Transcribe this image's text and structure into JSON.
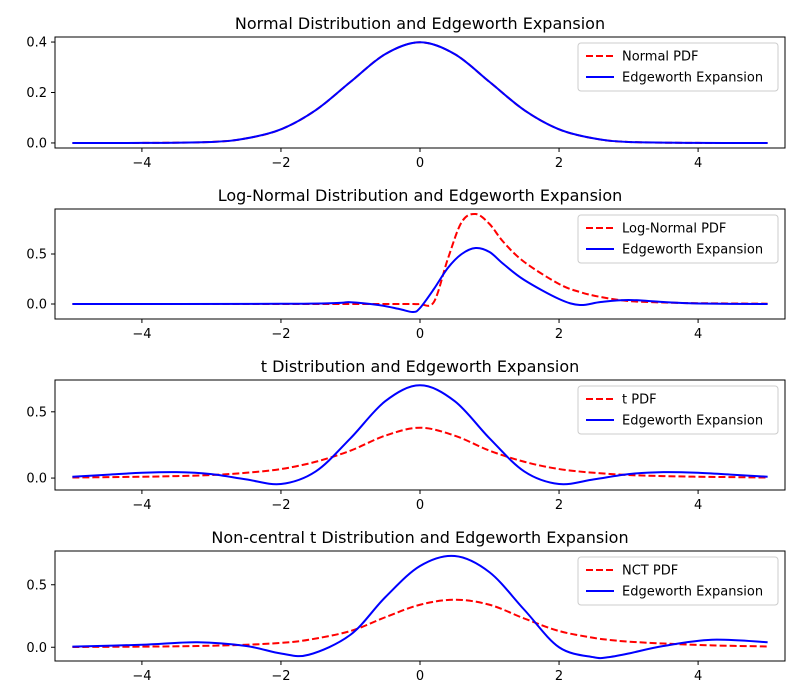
{
  "chart_data": [
    {
      "type": "line",
      "title": "Normal Distribution and Edgeworth Expansion",
      "xlabel": "",
      "ylabel": "",
      "xlim": [
        -5.25,
        5.25
      ],
      "ylim": [
        -0.02,
        0.42
      ],
      "xticks": [
        -4,
        -2,
        0,
        2,
        4
      ],
      "xtick_labels": [
        "−4",
        "−2",
        "0",
        "2",
        "4"
      ],
      "yticks": [
        0.0,
        0.2,
        0.4
      ],
      "ytick_labels": [
        "0.0",
        "0.2",
        "0.4"
      ],
      "grid": false,
      "legend": "upper right",
      "x": [
        -5,
        -4,
        -3,
        -2.5,
        -2,
        -1.5,
        -1,
        -0.5,
        0,
        0.5,
        1,
        1.5,
        2,
        2.5,
        3,
        4,
        5
      ],
      "series": [
        {
          "name": "Normal PDF",
          "style": "dashed",
          "color": "#ff0000",
          "values": [
            0.0,
            0.0001,
            0.004,
            0.018,
            0.054,
            0.13,
            0.242,
            0.352,
            0.399,
            0.352,
            0.242,
            0.13,
            0.054,
            0.018,
            0.004,
            0.0001,
            0.0
          ]
        },
        {
          "name": "Edgeworth Expansion",
          "style": "solid",
          "color": "#0000ff",
          "values": [
            0.0,
            0.0001,
            0.004,
            0.018,
            0.054,
            0.13,
            0.242,
            0.352,
            0.399,
            0.352,
            0.242,
            0.13,
            0.054,
            0.018,
            0.004,
            0.0001,
            0.0
          ]
        }
      ]
    },
    {
      "type": "line",
      "title": "Log-Normal Distribution and Edgeworth Expansion",
      "xlabel": "",
      "ylabel": "",
      "xlim": [
        -5.25,
        5.25
      ],
      "ylim": [
        -0.15,
        0.95
      ],
      "xticks": [
        -4,
        -2,
        0,
        2,
        4
      ],
      "xtick_labels": [
        "−4",
        "−2",
        "0",
        "2",
        "4"
      ],
      "yticks": [
        0.0,
        0.5
      ],
      "ytick_labels": [
        "0.0",
        "0.5"
      ],
      "grid": false,
      "legend": "upper right",
      "x": [
        -5,
        -2,
        -1.2,
        -1,
        -0.6,
        -0.3,
        -0.1,
        0,
        0.2,
        0.4,
        0.6,
        0.8,
        1.0,
        1.2,
        1.5,
        2.0,
        2.3,
        2.6,
        3.0,
        3.5,
        4.0,
        5.0
      ],
      "series": [
        {
          "name": "Log-Normal PDF",
          "style": "dashed",
          "color": "#ff0000",
          "values": [
            0,
            0,
            0,
            0,
            0,
            0,
            0,
            0,
            0.02,
            0.45,
            0.82,
            0.9,
            0.8,
            0.62,
            0.42,
            0.2,
            0.12,
            0.07,
            0.03,
            0.015,
            0.008,
            0.003
          ]
        },
        {
          "name": "Edgeworth Expansion",
          "style": "solid",
          "color": "#0000ff",
          "values": [
            0,
            0.002,
            0.01,
            0.018,
            -0.01,
            -0.05,
            -0.08,
            -0.04,
            0.15,
            0.36,
            0.5,
            0.56,
            0.52,
            0.4,
            0.24,
            0.05,
            -0.01,
            0.02,
            0.04,
            0.02,
            0.005,
            0.0
          ]
        }
      ]
    },
    {
      "type": "line",
      "title": "t Distribution and Edgeworth Expansion",
      "xlabel": "",
      "ylabel": "",
      "xlim": [
        -5.25,
        5.25
      ],
      "ylim": [
        -0.09,
        0.74
      ],
      "xticks": [
        -4,
        -2,
        0,
        2,
        4
      ],
      "xtick_labels": [
        "−4",
        "−2",
        "0",
        "2",
        "4"
      ],
      "yticks": [
        0.0,
        0.5
      ],
      "ytick_labels": [
        "0.0",
        "0.5"
      ],
      "grid": false,
      "legend": "upper right",
      "x": [
        -5,
        -4.5,
        -4,
        -3.5,
        -3,
        -2.5,
        -2,
        -1.5,
        -1,
        -0.5,
        0,
        0.5,
        1,
        1.5,
        2,
        2.5,
        3,
        3.5,
        4,
        4.5,
        5
      ],
      "series": [
        {
          "name": "t PDF",
          "style": "dashed",
          "color": "#ff0000",
          "values": [
            0.004,
            0.007,
            0.01,
            0.015,
            0.023,
            0.04,
            0.068,
            0.123,
            0.207,
            0.32,
            0.38,
            0.32,
            0.207,
            0.123,
            0.068,
            0.04,
            0.023,
            0.015,
            0.01,
            0.007,
            0.004
          ]
        },
        {
          "name": "Edgeworth Expansion",
          "style": "solid",
          "color": "#0000ff",
          "values": [
            0.01,
            0.025,
            0.04,
            0.045,
            0.03,
            -0.01,
            -0.045,
            0.05,
            0.3,
            0.58,
            0.7,
            0.58,
            0.3,
            0.05,
            -0.045,
            -0.01,
            0.03,
            0.045,
            0.04,
            0.025,
            0.01
          ]
        }
      ]
    },
    {
      "type": "line",
      "title": "Non-central t Distribution and Edgeworth Expansion",
      "xlabel": "",
      "ylabel": "",
      "xlim": [
        -5.25,
        5.25
      ],
      "ylim": [
        -0.11,
        0.77
      ],
      "xticks": [
        -4,
        -2,
        0,
        2,
        4
      ],
      "xtick_labels": [
        "−4",
        "−2",
        "0",
        "2",
        "4"
      ],
      "yticks": [
        0.0,
        0.5
      ],
      "ytick_labels": [
        "0.0",
        "0.5"
      ],
      "grid": false,
      "legend": "upper right",
      "x": [
        -5,
        -4,
        -3.2,
        -2.5,
        -2,
        -1.6,
        -1,
        -0.5,
        0,
        0.5,
        1,
        1.5,
        2,
        2.5,
        2.7,
        3,
        3.5,
        4.2,
        5
      ],
      "series": [
        {
          "name": "NCT PDF",
          "style": "dashed",
          "color": "#ff0000",
          "values": [
            0.002,
            0.005,
            0.01,
            0.02,
            0.035,
            0.06,
            0.13,
            0.24,
            0.34,
            0.38,
            0.34,
            0.23,
            0.13,
            0.075,
            0.06,
            0.045,
            0.03,
            0.015,
            0.006
          ]
        },
        {
          "name": "Edgeworth Expansion",
          "style": "solid",
          "color": "#0000ff",
          "values": [
            0.005,
            0.02,
            0.04,
            0.01,
            -0.05,
            -0.06,
            0.1,
            0.4,
            0.65,
            0.73,
            0.6,
            0.3,
            0.0,
            -0.08,
            -0.08,
            -0.05,
            0.01,
            0.06,
            0.04
          ]
        }
      ]
    }
  ]
}
